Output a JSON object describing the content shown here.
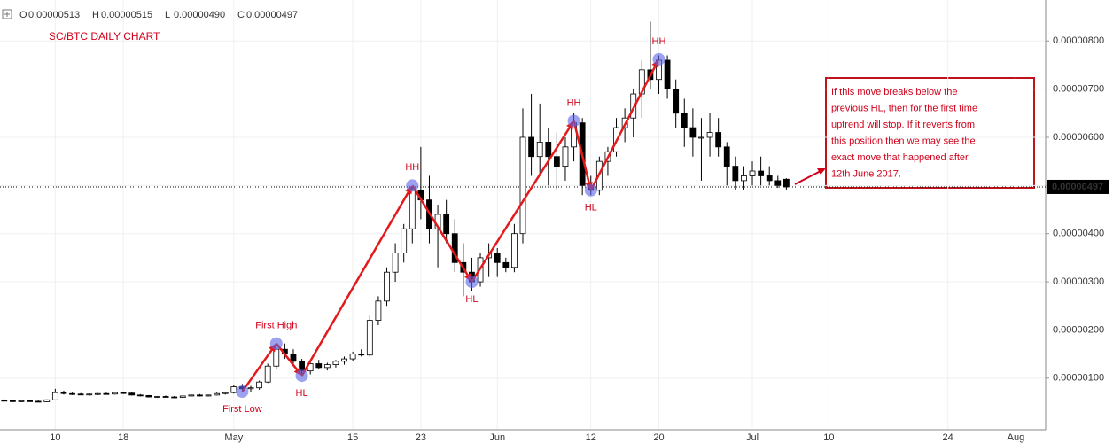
{
  "chart_data": {
    "type": "candlestick",
    "title": "SC/BTC DAILY CHART",
    "ohlc_header": [
      {
        "label": "O",
        "value": "0.00000513"
      },
      {
        "label": "H",
        "value": "0.00000515"
      },
      {
        "label": "L",
        "value": "0.00000490"
      },
      {
        "label": "C",
        "value": "0.00000497"
      }
    ],
    "categories": [
      null,
      null,
      null,
      null,
      null,
      null,
      "10",
      null,
      null,
      null,
      null,
      null,
      null,
      null,
      "18",
      null,
      null,
      null,
      null,
      null,
      null,
      null,
      null,
      null,
      null,
      null,
      null,
      "May",
      null,
      null,
      null,
      null,
      null,
      null,
      null,
      null,
      null,
      null,
      null,
      null,
      null,
      "15",
      null,
      null,
      null,
      null,
      null,
      null,
      null,
      "23",
      null,
      null,
      null,
      null,
      null,
      null,
      null,
      null,
      "Jun",
      null,
      null,
      null,
      null,
      null,
      null,
      null,
      null,
      null,
      null,
      "12",
      null,
      null,
      null,
      null,
      null,
      null,
      null,
      "20",
      null,
      null,
      null,
      null,
      null,
      null,
      null,
      null,
      null,
      null,
      "Jul",
      null,
      null,
      null,
      null
    ],
    "xlim": [
      -0.5,
      122.5
    ],
    "xticks": [
      {
        "value": 97,
        "label": "10"
      },
      {
        "value": 111,
        "label": "24"
      },
      {
        "value": 119,
        "label": "Aug"
      }
    ],
    "open": [
      5.4e-07,
      5.3e-07,
      5.2e-07,
      5.3e-07,
      5.2e-07,
      5.1e-07,
      5.5e-07,
      7e-07,
      6.8e-07,
      6.7e-07,
      6.6e-07,
      6.7e-07,
      6.8e-07,
      6.7e-07,
      7e-07,
      6.9e-07,
      6.5e-07,
      6.4e-07,
      6.1e-07,
      6.2e-07,
      6.1e-07,
      6e-07,
      6.3e-07,
      6.5e-07,
      6.3e-07,
      6.5e-07,
      6.8e-07,
      7e-07,
      8.2e-07,
      7.8e-07,
      8e-07,
      9.2e-07,
      1.25e-06,
      1.6e-06,
      1.5e-06,
      1.35e-06,
      1.15e-06,
      1.3e-06,
      1.22e-06,
      1.28e-06,
      1.35e-06,
      1.4e-06,
      1.5e-06,
      1.48e-06,
      2.2e-06,
      2.6e-06,
      3.2e-06,
      3.6e-06,
      4.1e-06,
      4.9e-06,
      4.7e-06,
      4.1e-06,
      4.4e-06,
      4e-06,
      3.4e-06,
      3.2e-06,
      3e-06,
      3.5e-06,
      3.6e-06,
      3.4e-06,
      3.3e-06,
      4e-06,
      6e-06,
      5.6e-06,
      5.9e-06,
      5.6e-06,
      5.4e-06,
      5.8e-06,
      6.3e-06,
      5e-06,
      4.9e-06,
      5.5e-06,
      5.7e-06,
      6.2e-06,
      6.4e-06,
      6.9e-06,
      7.4e-06,
      7.2e-06,
      7.6e-06,
      7e-06,
      6.5e-06,
      6.2e-06,
      6e-06,
      6e-06,
      6.1e-06,
      5.8e-06,
      5.4e-06,
      5.1e-06,
      5.2e-06,
      5.3e-06,
      5.2e-06,
      5.1e-06,
      5.13e-06
    ],
    "high": [
      5.6e-07,
      5.5e-07,
      5.4e-07,
      5.5e-07,
      5.4e-07,
      5.6e-07,
      7.8e-07,
      7.4e-07,
      7e-07,
      6.9e-07,
      6.8e-07,
      6.9e-07,
      7e-07,
      7.1e-07,
      7.2e-07,
      7.1e-07,
      6.7e-07,
      6.5e-07,
      6.3e-07,
      6.4e-07,
      6.3e-07,
      6.4e-07,
      6.6e-07,
      6.7e-07,
      6.6e-07,
      7e-07,
      7.2e-07,
      8.5e-07,
      8.8e-07,
      8.4e-07,
      9.5e-07,
      1.3e-06,
      1.65e-06,
      1.72e-06,
      1.6e-06,
      1.4e-06,
      1.35e-06,
      1.38e-06,
      1.32e-06,
      1.38e-06,
      1.45e-06,
      1.55e-06,
      1.6e-06,
      2.3e-06,
      2.7e-06,
      3.3e-06,
      3.8e-06,
      4.2e-06,
      5e-06,
      5.8e-06,
      5.2e-06,
      4.6e-06,
      4.7e-06,
      4.3e-06,
      3.8e-06,
      3.5e-06,
      3.6e-06,
      3.8e-06,
      3.7e-06,
      3.5e-06,
      4.2e-06,
      6.6e-06,
      6.9e-06,
      6.7e-06,
      6.2e-06,
      6.1e-06,
      6e-06,
      6.5e-06,
      6.4e-06,
      5.2e-06,
      5.6e-06,
      5.8e-06,
      6.4e-06,
      6.6e-06,
      7e-06,
      7.6e-06,
      8.4e-06,
      7.7e-06,
      7.7e-06,
      7.2e-06,
      6.8e-06,
      6.6e-06,
      6.4e-06,
      6.5e-06,
      6.4e-06,
      5.9e-06,
      5.6e-06,
      5.4e-06,
      5.5e-06,
      5.6e-06,
      5.4e-06,
      5.2e-06,
      5.15e-06
    ],
    "low": [
      5.2e-07,
      5.1e-07,
      5e-07,
      5.1e-07,
      5e-07,
      5e-07,
      5.4e-07,
      6.6e-07,
      6.5e-07,
      6.5e-07,
      6.4e-07,
      6.5e-07,
      6.6e-07,
      6.6e-07,
      6.7e-07,
      6.4e-07,
      6.2e-07,
      6e-07,
      5.9e-07,
      6e-07,
      5.9e-07,
      5.9e-07,
      6.2e-07,
      6.2e-07,
      6.2e-07,
      6.4e-07,
      6.6e-07,
      6.8e-07,
      7.5e-07,
      7.2e-07,
      7.6e-07,
      9e-07,
      1.2e-06,
      1.4e-06,
      1.3e-06,
      1.05e-06,
      1.08e-06,
      1.18e-06,
      1.16e-06,
      1.22e-06,
      1.28e-06,
      1.35e-06,
      1.45e-06,
      1.45e-06,
      2.1e-06,
      2.5e-06,
      3e-06,
      3.4e-06,
      3.8e-06,
      4.3e-06,
      3.8e-06,
      3.3e-06,
      3.8e-06,
      3.2e-06,
      2.7e-06,
      2.8e-06,
      2.9e-06,
      3.1e-06,
      3.1e-06,
      3.2e-06,
      3.2e-06,
      3.8e-06,
      5.2e-06,
      5.2e-06,
      5e-06,
      4.9e-06,
      5.1e-06,
      5.5e-06,
      4.8e-06,
      4.8e-06,
      4.8e-06,
      5.2e-06,
      5.6e-06,
      5.9e-06,
      6e-06,
      6.4e-06,
      7e-06,
      6.9e-06,
      6.8e-06,
      6.2e-06,
      5.8e-06,
      5.6e-06,
      5.1e-06,
      5.6e-06,
      5.6e-06,
      5e-06,
      4.9e-06,
      4.9e-06,
      5e-06,
      5e-06,
      5e-06,
      4.95e-06,
      4.9e-06
    ],
    "close": [
      5.3e-07,
      5.2e-07,
      5.3e-07,
      5.2e-07,
      5.1e-07,
      5.5e-07,
      7e-07,
      6.8e-07,
      6.7e-07,
      6.6e-07,
      6.7e-07,
      6.8e-07,
      6.7e-07,
      7e-07,
      6.9e-07,
      6.5e-07,
      6.4e-07,
      6.1e-07,
      6.2e-07,
      6.1e-07,
      6e-07,
      6.3e-07,
      6.5e-07,
      6.3e-07,
      6.5e-07,
      6.8e-07,
      7e-07,
      8.2e-07,
      7.8e-07,
      8e-07,
      9.2e-07,
      1.25e-06,
      1.6e-06,
      1.5e-06,
      1.35e-06,
      1.15e-06,
      1.3e-06,
      1.22e-06,
      1.28e-06,
      1.35e-06,
      1.4e-06,
      1.5e-06,
      1.48e-06,
      2.2e-06,
      2.6e-06,
      3.2e-06,
      3.6e-06,
      4.1e-06,
      4.9e-06,
      4.7e-06,
      4.1e-06,
      4.4e-06,
      4e-06,
      3.4e-06,
      3.2e-06,
      3e-06,
      3.5e-06,
      3.6e-06,
      3.4e-06,
      3.3e-06,
      4e-06,
      6e-06,
      5.6e-06,
      5.9e-06,
      5.6e-06,
      5.4e-06,
      5.8e-06,
      6.3e-06,
      5e-06,
      4.9e-06,
      5.5e-06,
      5.7e-06,
      6.2e-06,
      6.4e-06,
      6.9e-06,
      7.4e-06,
      7.2e-06,
      7.6e-06,
      7e-06,
      6.5e-06,
      6.2e-06,
      6e-06,
      6e-06,
      6.1e-06,
      5.8e-06,
      5.4e-06,
      5.1e-06,
      5.2e-06,
      5.3e-06,
      5.2e-06,
      5.1e-06,
      5e-06,
      4.97e-06
    ],
    "up_color": "#ffffff",
    "down_color": "#000000",
    "ylim": [
      -7e-08,
      8.85e-06
    ],
    "yticks": [
      {
        "value": 1e-06,
        "label": "0.00000100"
      },
      {
        "value": 2e-06,
        "label": "0.00000200"
      },
      {
        "value": 3e-06,
        "label": "0.00000300"
      },
      {
        "value": 4e-06,
        "label": "0.00000400"
      },
      {
        "value": 5e-06,
        "label": "0.00000500"
      },
      {
        "value": 6e-06,
        "label": "0.00000600"
      },
      {
        "value": 7e-06,
        "label": "0.00000700"
      },
      {
        "value": 8e-06,
        "label": "0.00000800"
      }
    ],
    "grid": true,
    "last_value": {
      "value": 4.97e-06,
      "label": "0.00000497"
    },
    "swing_color": "#e31a1c",
    "swings": [
      {
        "label": "First Low",
        "at": 28,
        "value": 7.2e-07,
        "position": "below"
      },
      {
        "label": "First High",
        "at": 32,
        "value": 1.72e-06,
        "position": "above"
      },
      {
        "label": "HL",
        "at": 35,
        "value": 1.05e-06,
        "position": "below"
      },
      {
        "label": "HH",
        "at": 48,
        "value": 5e-06,
        "position": "above"
      },
      {
        "label": "HL",
        "at": 55,
        "value": 3e-06,
        "position": "below"
      },
      {
        "label": "HH",
        "at": 67,
        "value": 6.34e-06,
        "position": "above"
      },
      {
        "label": "HL",
        "at": 69,
        "value": 4.9e-06,
        "position": "below"
      },
      {
        "label": "HH",
        "at": 77,
        "value": 7.62e-06,
        "position": "above"
      }
    ],
    "note_lines": [
      "If this move breaks below the",
      "previous HL, then for the first time",
      "uptrend will stop. If it reverts from",
      "this position then we may see the",
      "exact move that happened after",
      "12th June 2017."
    ]
  }
}
